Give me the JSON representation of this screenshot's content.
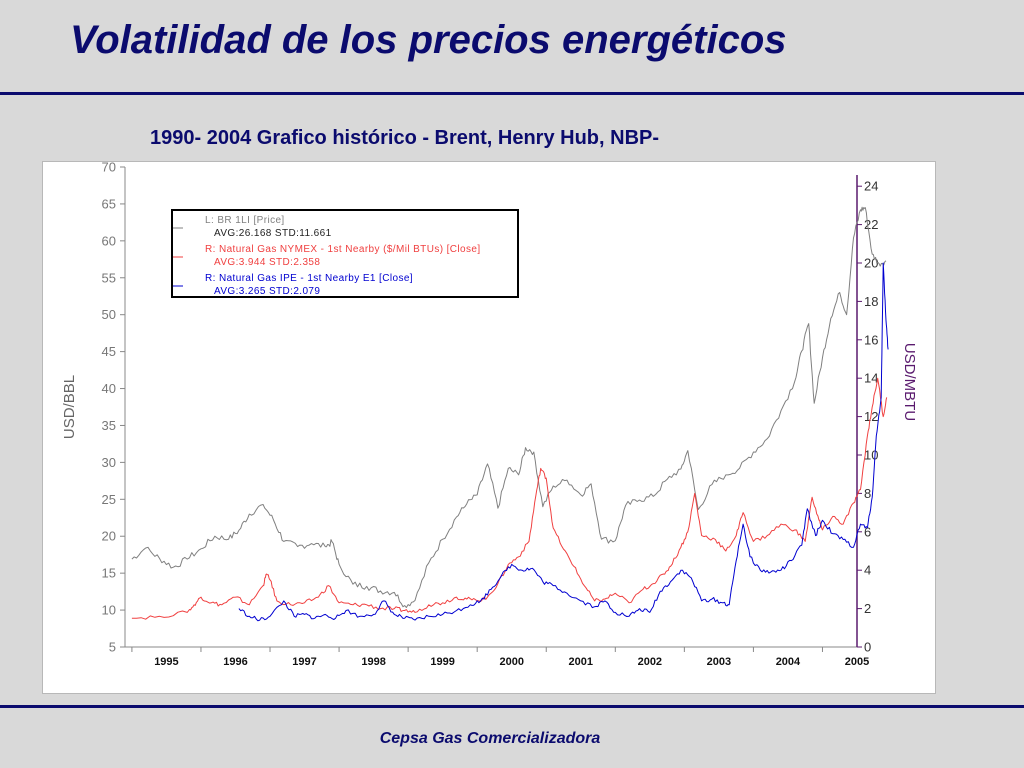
{
  "slide": {
    "title": "Volatilidad de los precios energéticos",
    "chart_heading": "1990- 2004 Grafico histórico - Brent, Henry Hub, NBP-",
    "footer": "Cepsa Gas Comercializadora"
  },
  "colors": {
    "title": "#0b0b6e",
    "brent": "#808080",
    "nymex": "#f04040",
    "ipe": "#0000d0",
    "right_axis": "#5a1a6e"
  },
  "chart_data": {
    "type": "line",
    "title": "",
    "xlabel": "",
    "ylabel_left": "USD/BBL",
    "ylabel_right": "USD/MBTU",
    "x_ticks": [
      "1995",
      "1996",
      "1997",
      "1998",
      "1999",
      "2000",
      "2001",
      "2002",
      "2003",
      "2004",
      "2005"
    ],
    "xlim": [
      1994.9,
      2005.5
    ],
    "ylim_left": [
      5,
      70
    ],
    "ylim_right": [
      0,
      25
    ],
    "yticks_left": [
      5,
      10,
      15,
      20,
      25,
      30,
      35,
      40,
      45,
      50,
      55,
      60,
      65,
      70
    ],
    "yticks_right": [
      0,
      2,
      4,
      6,
      8,
      10,
      12,
      14,
      16,
      18,
      20,
      22,
      24
    ],
    "grid": false,
    "legend_position": "top-left",
    "legend": [
      {
        "label": "L: BR   1LI [Price]",
        "stats": "AVG:26.168  STD:11.661",
        "color": "#808080"
      },
      {
        "label": "R: Natural Gas  NYMEX - 1st Nearby ($/Mil BTUs) [Close]",
        "stats": "AVG:3.944  STD:2.358",
        "color": "#f04040"
      },
      {
        "label": "R: Natural Gas  IPE - 1st Nearby E1 [Close]",
        "stats": "AVG:3.265  STD:2.079",
        "color": "#0000d0"
      }
    ],
    "series": [
      {
        "name": "L: BR   1LI [Price]",
        "axis": "left",
        "color": "#808080",
        "points": [
          [
            1995.0,
            16.9
          ],
          [
            1995.2,
            18.4
          ],
          [
            1995.4,
            17.0
          ],
          [
            1995.6,
            15.8
          ],
          [
            1995.8,
            16.9
          ],
          [
            1996.0,
            18.3
          ],
          [
            1996.2,
            20.0
          ],
          [
            1996.4,
            19.6
          ],
          [
            1996.55,
            20.8
          ],
          [
            1996.7,
            23.0
          ],
          [
            1996.9,
            24.3
          ],
          [
            1997.05,
            22.2
          ],
          [
            1997.2,
            19.3
          ],
          [
            1997.4,
            18.6
          ],
          [
            1997.6,
            19.0
          ],
          [
            1997.8,
            18.6
          ],
          [
            1997.9,
            19.2
          ],
          [
            1998.0,
            16.2
          ],
          [
            1998.2,
            13.5
          ],
          [
            1998.4,
            13.2
          ],
          [
            1998.6,
            12.6
          ],
          [
            1998.8,
            12.4
          ],
          [
            1998.95,
            10.6
          ],
          [
            1999.1,
            11.3
          ],
          [
            1999.3,
            16.4
          ],
          [
            1999.5,
            19.6
          ],
          [
            1999.7,
            22.6
          ],
          [
            1999.85,
            24.4
          ],
          [
            2000.0,
            25.6
          ],
          [
            2000.15,
            29.8
          ],
          [
            2000.3,
            23.8
          ],
          [
            2000.45,
            29.2
          ],
          [
            2000.6,
            28.3
          ],
          [
            2000.7,
            32.0
          ],
          [
            2000.82,
            31.4
          ],
          [
            2000.95,
            24.0
          ],
          [
            2001.1,
            26.8
          ],
          [
            2001.3,
            27.6
          ],
          [
            2001.5,
            25.6
          ],
          [
            2001.65,
            27.1
          ],
          [
            2001.8,
            19.6
          ],
          [
            2002.0,
            19.4
          ],
          [
            2002.15,
            24.2
          ],
          [
            2002.35,
            24.9
          ],
          [
            2002.55,
            25.4
          ],
          [
            2002.75,
            27.7
          ],
          [
            2002.95,
            29.1
          ],
          [
            2003.05,
            31.6
          ],
          [
            2003.2,
            23.6
          ],
          [
            2003.4,
            27.0
          ],
          [
            2003.6,
            28.3
          ],
          [
            2003.8,
            29.2
          ],
          [
            2004.0,
            31.4
          ],
          [
            2004.2,
            33.2
          ],
          [
            2004.4,
            37.0
          ],
          [
            2004.6,
            41.0
          ],
          [
            2004.7,
            45.1
          ],
          [
            2004.8,
            48.8
          ],
          [
            2004.88,
            38.0
          ],
          [
            2005.0,
            44.2
          ],
          [
            2005.12,
            49.5
          ],
          [
            2005.25,
            53.0
          ],
          [
            2005.35,
            50.0
          ],
          [
            2005.45,
            60.4
          ],
          [
            2005.55,
            64.2
          ],
          [
            2005.62,
            64.5
          ],
          [
            2005.72,
            58.2
          ],
          [
            2005.82,
            56.9
          ],
          [
            2005.92,
            57.3
          ]
        ]
      },
      {
        "name": "R: Natural Gas  NYMEX - 1st Nearby ($/Mil BTUs) [Close]",
        "axis": "right",
        "color": "#f04040",
        "points": [
          [
            1995.0,
            1.5
          ],
          [
            1995.4,
            1.6
          ],
          [
            1995.8,
            1.8
          ],
          [
            1995.9,
            2.2
          ],
          [
            1996.0,
            2.6
          ],
          [
            1996.15,
            2.3
          ],
          [
            1996.3,
            2.2
          ],
          [
            1996.5,
            2.6
          ],
          [
            1996.7,
            2.2
          ],
          [
            1996.9,
            3.2
          ],
          [
            1996.95,
            3.8
          ],
          [
            1997.0,
            3.5
          ],
          [
            1997.1,
            2.4
          ],
          [
            1997.3,
            2.2
          ],
          [
            1997.5,
            2.3
          ],
          [
            1997.7,
            2.6
          ],
          [
            1997.85,
            3.2
          ],
          [
            1998.0,
            2.3
          ],
          [
            1998.2,
            2.2
          ],
          [
            1998.4,
            2.2
          ],
          [
            1998.6,
            2.0
          ],
          [
            1998.8,
            2.0
          ],
          [
            1998.95,
            1.9
          ],
          [
            1999.1,
            1.8
          ],
          [
            1999.3,
            2.2
          ],
          [
            1999.5,
            2.3
          ],
          [
            1999.7,
            2.6
          ],
          [
            1999.85,
            2.5
          ],
          [
            2000.0,
            2.4
          ],
          [
            2000.15,
            2.6
          ],
          [
            2000.3,
            3.3
          ],
          [
            2000.45,
            4.3
          ],
          [
            2000.6,
            4.7
          ],
          [
            2000.75,
            5.5
          ],
          [
            2000.85,
            7.9
          ],
          [
            2000.92,
            9.3
          ],
          [
            2001.0,
            8.8
          ],
          [
            2001.1,
            6.2
          ],
          [
            2001.25,
            5.1
          ],
          [
            2001.4,
            4.2
          ],
          [
            2001.55,
            3.2
          ],
          [
            2001.7,
            2.4
          ],
          [
            2001.85,
            2.5
          ],
          [
            2002.0,
            2.8
          ],
          [
            2002.2,
            2.3
          ],
          [
            2002.4,
            3.0
          ],
          [
            2002.55,
            3.3
          ],
          [
            2002.7,
            3.8
          ],
          [
            2002.8,
            4.2
          ],
          [
            2002.95,
            5.2
          ],
          [
            2003.05,
            6.0
          ],
          [
            2003.15,
            8.0
          ],
          [
            2003.25,
            5.8
          ],
          [
            2003.45,
            5.6
          ],
          [
            2003.6,
            5.0
          ],
          [
            2003.75,
            5.8
          ],
          [
            2003.85,
            7.0
          ],
          [
            2004.0,
            5.5
          ],
          [
            2004.2,
            5.8
          ],
          [
            2004.4,
            6.4
          ],
          [
            2004.6,
            6.1
          ],
          [
            2004.75,
            5.5
          ],
          [
            2004.85,
            7.8
          ],
          [
            2004.95,
            6.6
          ],
          [
            2005.0,
            6.1
          ],
          [
            2005.15,
            6.8
          ],
          [
            2005.3,
            6.4
          ],
          [
            2005.45,
            7.5
          ],
          [
            2005.55,
            8.2
          ],
          [
            2005.65,
            11.0
          ],
          [
            2005.72,
            12.5
          ],
          [
            2005.8,
            14.0
          ],
          [
            2005.88,
            12.0
          ],
          [
            2005.93,
            13.0
          ]
        ]
      },
      {
        "name": "R: Natural Gas  IPE - 1st Nearby E1 [Close]",
        "axis": "right",
        "color": "#0000d0",
        "points": [
          [
            1996.55,
            2.0
          ],
          [
            1996.7,
            1.6
          ],
          [
            1996.85,
            1.4
          ],
          [
            1997.0,
            1.6
          ],
          [
            1997.2,
            2.4
          ],
          [
            1997.35,
            1.6
          ],
          [
            1997.5,
            1.7
          ],
          [
            1997.65,
            1.5
          ],
          [
            1997.8,
            1.7
          ],
          [
            1997.95,
            1.5
          ],
          [
            1998.1,
            1.9
          ],
          [
            1998.3,
            1.6
          ],
          [
            1998.5,
            1.7
          ],
          [
            1998.65,
            2.4
          ],
          [
            1998.8,
            1.7
          ],
          [
            1998.95,
            1.5
          ],
          [
            1999.1,
            1.4
          ],
          [
            1999.3,
            1.6
          ],
          [
            1999.5,
            1.7
          ],
          [
            1999.7,
            1.9
          ],
          [
            1999.9,
            2.2
          ],
          [
            2000.05,
            2.4
          ],
          [
            2000.2,
            3.0
          ],
          [
            2000.35,
            3.7
          ],
          [
            2000.5,
            4.3
          ],
          [
            2000.65,
            4.0
          ],
          [
            2000.8,
            4.1
          ],
          [
            2000.95,
            3.4
          ],
          [
            2001.1,
            3.2
          ],
          [
            2001.3,
            2.8
          ],
          [
            2001.5,
            2.4
          ],
          [
            2001.7,
            2.1
          ],
          [
            2001.85,
            2.4
          ],
          [
            2002.0,
            1.8
          ],
          [
            2002.2,
            1.6
          ],
          [
            2002.35,
            2.0
          ],
          [
            2002.5,
            1.8
          ],
          [
            2002.65,
            2.9
          ],
          [
            2002.8,
            3.4
          ],
          [
            2002.95,
            4.0
          ],
          [
            2003.1,
            3.6
          ],
          [
            2003.25,
            2.4
          ],
          [
            2003.4,
            2.5
          ],
          [
            2003.55,
            2.3
          ],
          [
            2003.65,
            2.2
          ],
          [
            2003.75,
            4.5
          ],
          [
            2003.85,
            6.4
          ],
          [
            2003.95,
            4.7
          ],
          [
            2004.1,
            4.0
          ],
          [
            2004.25,
            3.9
          ],
          [
            2004.4,
            4.0
          ],
          [
            2004.55,
            4.5
          ],
          [
            2004.7,
            5.3
          ],
          [
            2004.78,
            7.2
          ],
          [
            2004.9,
            5.8
          ],
          [
            2005.0,
            6.6
          ],
          [
            2005.15,
            5.9
          ],
          [
            2005.3,
            5.6
          ],
          [
            2005.45,
            5.2
          ],
          [
            2005.55,
            6.4
          ],
          [
            2005.65,
            6.2
          ],
          [
            2005.72,
            7.8
          ],
          [
            2005.78,
            11.0
          ],
          [
            2005.85,
            13.0
          ],
          [
            2005.88,
            20.0
          ],
          [
            2005.92,
            17.0
          ],
          [
            2005.95,
            15.5
          ]
        ]
      }
    ]
  }
}
